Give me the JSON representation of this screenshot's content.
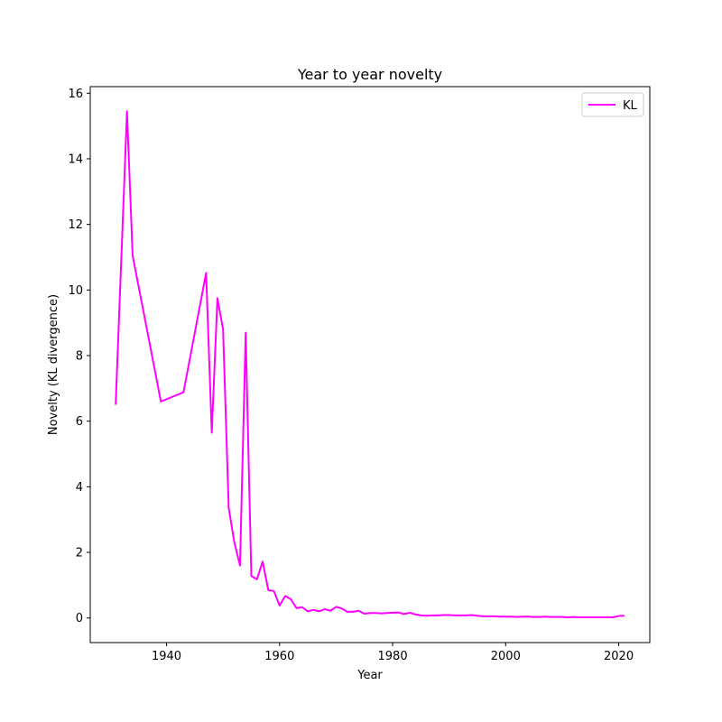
{
  "chart_data": {
    "type": "line",
    "title": "Year to year novelty",
    "xlabel": "Year",
    "ylabel": "Novelty (KL divergence)",
    "xlim": [
      1926.5,
      2025.5
    ],
    "ylim": [
      -0.75,
      16.2
    ],
    "xticks": [
      1940,
      1960,
      1980,
      2000,
      2020
    ],
    "yticks": [
      0,
      2,
      4,
      6,
      8,
      10,
      12,
      14,
      16
    ],
    "grid": false,
    "legend_position": "top-right",
    "series": [
      {
        "name": "KL",
        "color": "#ff00ff",
        "x": [
          1931,
          1933,
          1934,
          1939,
          1943,
          1947,
          1948,
          1949,
          1950,
          1951,
          1952,
          1953,
          1954,
          1955,
          1956,
          1957,
          1958,
          1959,
          1960,
          1961,
          1962,
          1963,
          1964,
          1965,
          1966,
          1967,
          1968,
          1969,
          1970,
          1971,
          1972,
          1973,
          1974,
          1975,
          1976,
          1977,
          1978,
          1979,
          1980,
          1981,
          1982,
          1983,
          1984,
          1985,
          1986,
          1987,
          1988,
          1989,
          1990,
          1991,
          1992,
          1993,
          1994,
          1995,
          1996,
          1997,
          1998,
          1999,
          2000,
          2001,
          2002,
          2003,
          2004,
          2005,
          2006,
          2007,
          2008,
          2009,
          2010,
          2011,
          2012,
          2013,
          2014,
          2015,
          2016,
          2017,
          2018,
          2019,
          2020,
          2021
        ],
        "y": [
          6.5,
          15.45,
          11.05,
          6.6,
          6.88,
          10.52,
          5.65,
          9.75,
          8.8,
          3.35,
          2.3,
          1.6,
          8.7,
          1.28,
          1.18,
          1.72,
          0.85,
          0.82,
          0.38,
          0.67,
          0.57,
          0.3,
          0.33,
          0.2,
          0.25,
          0.2,
          0.27,
          0.22,
          0.34,
          0.29,
          0.19,
          0.19,
          0.22,
          0.13,
          0.15,
          0.15,
          0.14,
          0.15,
          0.16,
          0.17,
          0.12,
          0.16,
          0.11,
          0.08,
          0.07,
          0.08,
          0.08,
          0.09,
          0.09,
          0.08,
          0.08,
          0.08,
          0.09,
          0.07,
          0.05,
          0.05,
          0.05,
          0.04,
          0.04,
          0.04,
          0.03,
          0.04,
          0.04,
          0.03,
          0.03,
          0.04,
          0.03,
          0.03,
          0.03,
          0.02,
          0.03,
          0.02,
          0.02,
          0.02,
          0.02,
          0.02,
          0.02,
          0.02,
          0.06,
          0.07
        ]
      }
    ]
  }
}
